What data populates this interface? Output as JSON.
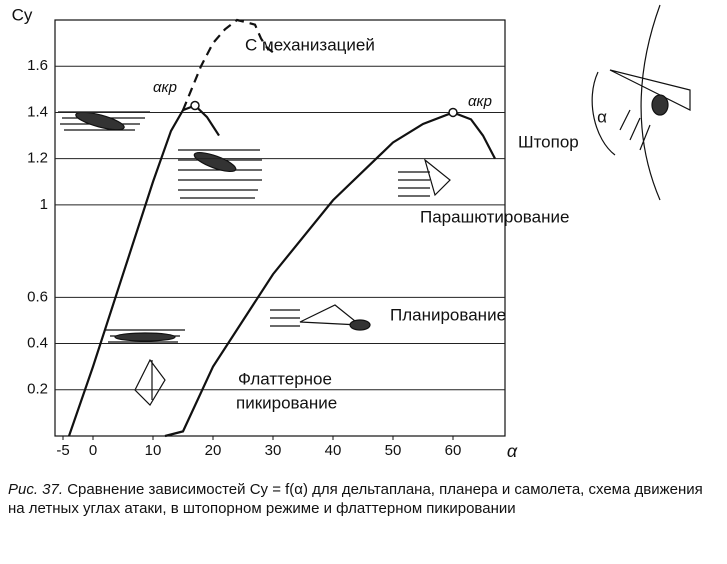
{
  "chart_data": {
    "type": "line",
    "y_label": "Cy",
    "x_label": "α",
    "xlim": [
      -5,
      70
    ],
    "ylim": [
      0,
      1.8
    ],
    "xticks": [
      -5,
      0,
      10,
      20,
      30,
      40,
      50,
      60
    ],
    "yticks": [
      0.2,
      0.4,
      0.6,
      1.0,
      1.2,
      1.4,
      1.6
    ],
    "grid": true,
    "series": [
      {
        "color": "#111111",
        "dashed": false,
        "x": [
          -4,
          0,
          5,
          10,
          13,
          15,
          17,
          19,
          21
        ],
        "values": [
          0,
          0.3,
          0.7,
          1.1,
          1.32,
          1.41,
          1.43,
          1.38,
          1.3
        ]
      },
      {
        "color": "#111111",
        "dashed": true,
        "x": [
          15,
          18,
          20,
          22,
          24,
          27,
          28,
          29,
          30
        ],
        "values": [
          1.41,
          1.6,
          1.7,
          1.76,
          1.8,
          1.78,
          1.72,
          1.68,
          1.66
        ]
      },
      {
        "color": "#111111",
        "dashed": false,
        "x": [
          12,
          15,
          20,
          30,
          40,
          50,
          55,
          60,
          63,
          65,
          67
        ],
        "values": [
          0,
          0.02,
          0.3,
          0.7,
          1.02,
          1.27,
          1.35,
          1.4,
          1.37,
          1.3,
          1.2
        ]
      }
    ],
    "annotations": [
      "αкр",
      "αкр",
      "С механизацией",
      "Штопор",
      "Парашютирование",
      "Планирование",
      "Флаттерное",
      "пикирование",
      "α"
    ],
    "caption_label": "Рис. 37.",
    "caption": "Сравнение зависимостей Cy = f(α) для дельтаплана, планера и самолета, схема движения на летных углах атаки, в штопорном режиме и флаттерном пикировании"
  }
}
